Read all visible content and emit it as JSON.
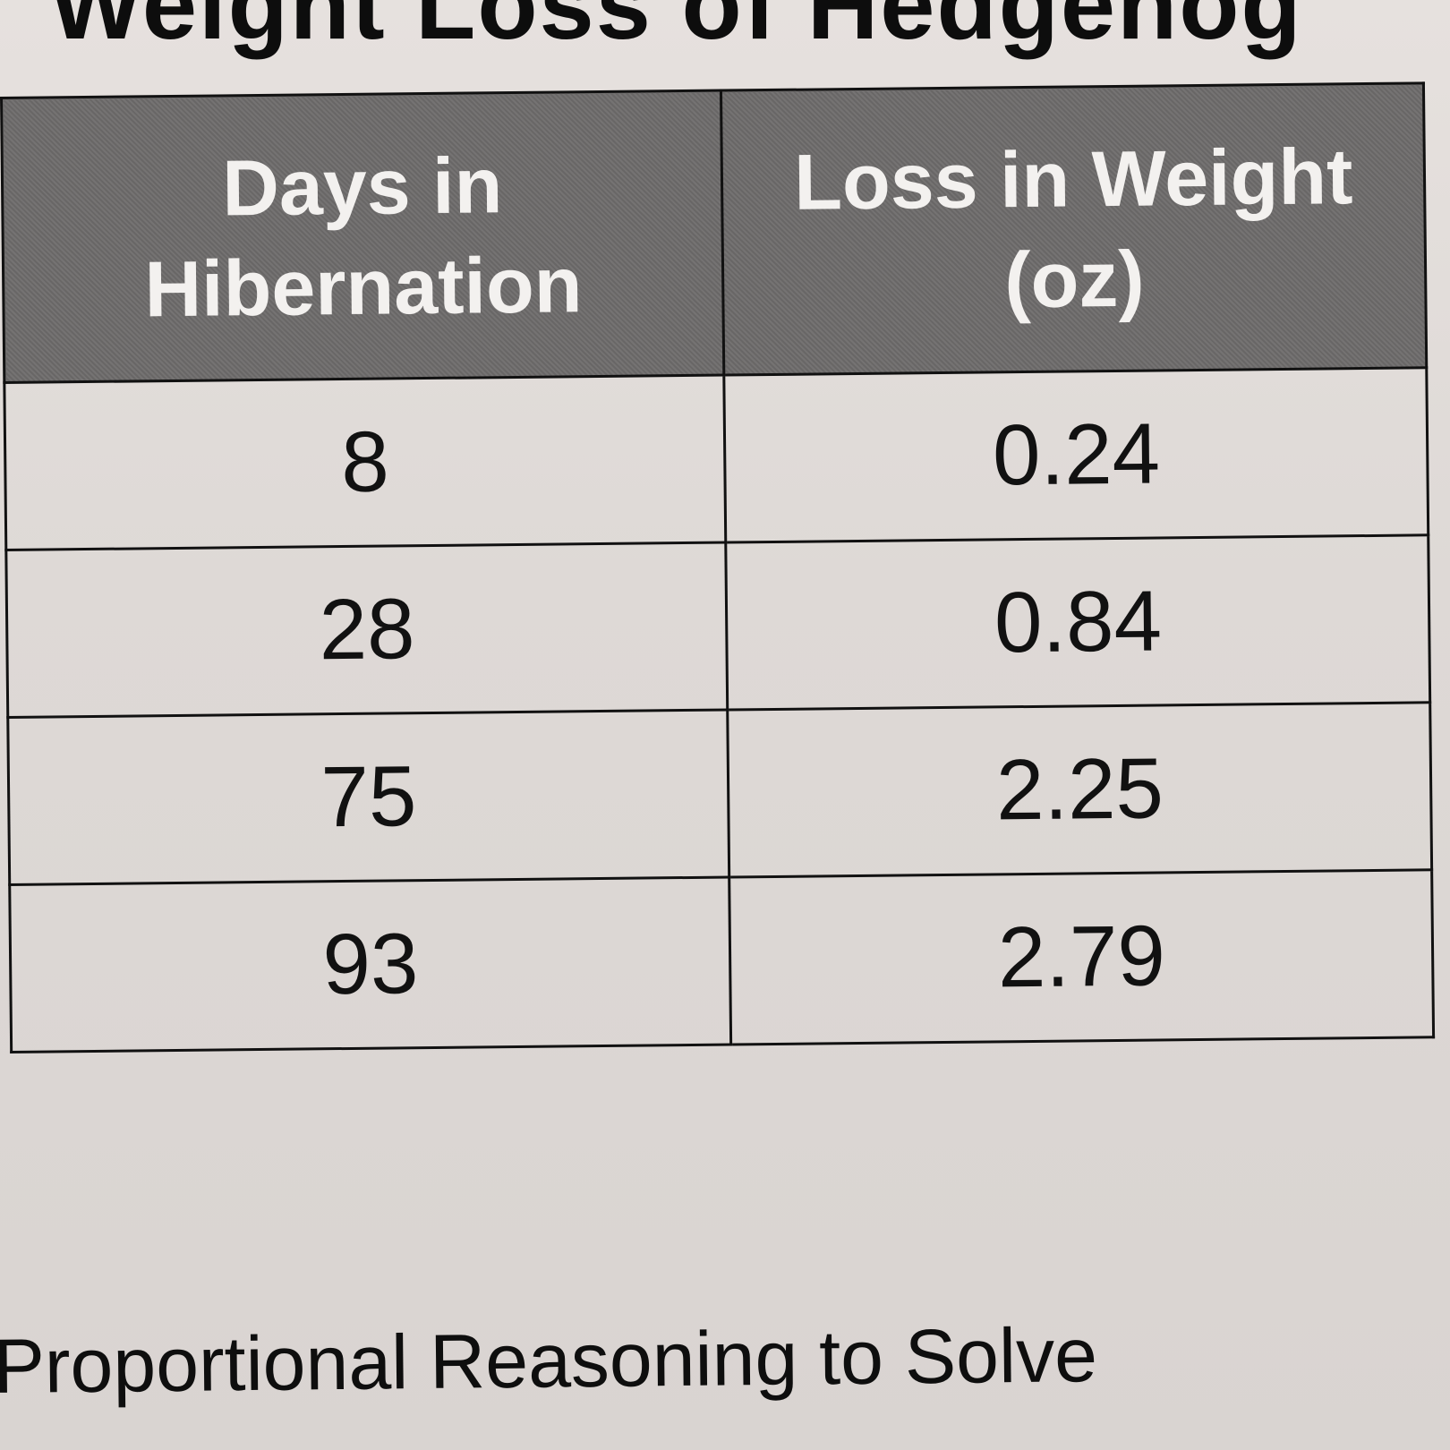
{
  "title": "Weight Loss of Hedgehog",
  "table": {
    "headers": [
      "Days in Hibernation",
      "Loss in Weight (oz)"
    ],
    "rows": [
      [
        "8",
        "0.24"
      ],
      [
        "28",
        "0.84"
      ],
      [
        "75",
        "2.25"
      ],
      [
        "93",
        "2.79"
      ]
    ]
  },
  "footer": "Proportional Reasoning to Solve",
  "chart_data": {
    "type": "table",
    "title": "Weight Loss of Hedgehog",
    "columns": [
      "Days in Hibernation",
      "Loss in Weight (oz)"
    ],
    "x": [
      8,
      28,
      75,
      93
    ],
    "y": [
      0.24,
      0.84,
      2.25,
      2.79
    ]
  }
}
